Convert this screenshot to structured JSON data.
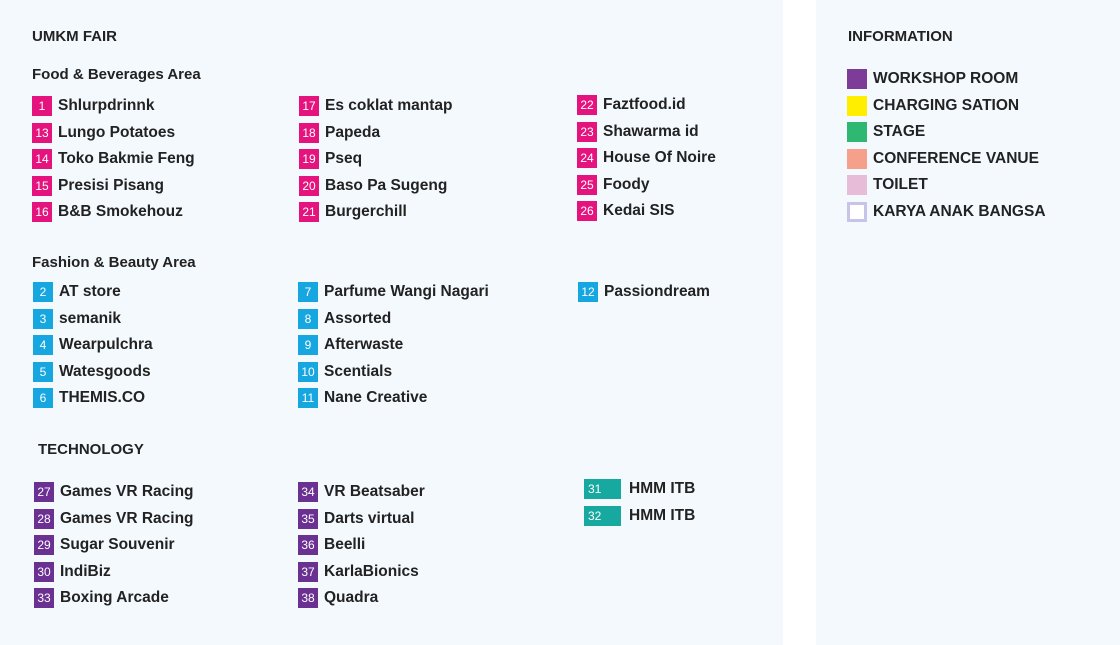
{
  "title": "UMKM FAIR",
  "colors": {
    "food": "#e5137e",
    "fashion": "#17a7e0",
    "technology": "#6a3092",
    "teal": "#17a89f",
    "panel_bg": "#f4f9fd"
  },
  "food": {
    "heading": "Food & Beverages Area",
    "columns": [
      [
        {
          "num": "1",
          "name": "Shlurpdrinnk"
        },
        {
          "num": "13",
          "name": "Lungo Potatoes"
        },
        {
          "num": "14",
          "name": "Toko Bakmie Feng"
        },
        {
          "num": "15",
          "name": "Presisi Pisang"
        },
        {
          "num": "16",
          "name": "B&B Smokehouz"
        }
      ],
      [
        {
          "num": "17",
          "name": "Es coklat mantap"
        },
        {
          "num": "18",
          "name": "Papeda"
        },
        {
          "num": "19",
          "name": "Pseq"
        },
        {
          "num": "20",
          "name": "Baso Pa Sugeng"
        },
        {
          "num": "21",
          "name": "Burgerchill"
        }
      ],
      [
        {
          "num": "22",
          "name": "Faztfood.id"
        },
        {
          "num": "23",
          "name": "Shawarma id"
        },
        {
          "num": "24",
          "name": "House Of Noire"
        },
        {
          "num": "25",
          "name": "Foody"
        },
        {
          "num": "26",
          "name": "Kedai SIS"
        }
      ]
    ]
  },
  "fashion": {
    "heading": "Fashion & Beauty Area",
    "columns": [
      [
        {
          "num": "2",
          "name": "AT store"
        },
        {
          "num": "3",
          "name": "semanik"
        },
        {
          "num": "4",
          "name": "Wearpulchra"
        },
        {
          "num": "5",
          "name": "Watesgoods"
        },
        {
          "num": "6",
          "name": "THEMIS.CO"
        }
      ],
      [
        {
          "num": "7",
          "name": "Parfume Wangi Nagari"
        },
        {
          "num": "8",
          "name": "Assorted"
        },
        {
          "num": "9",
          "name": "Afterwaste"
        },
        {
          "num": "10",
          "name": "Scentials"
        },
        {
          "num": "11",
          "name": "Nane Creative"
        }
      ],
      [
        {
          "num": "12",
          "name": "Passiondream"
        }
      ]
    ]
  },
  "technology": {
    "heading": "TECHNOLOGY",
    "columns": [
      [
        {
          "num": "27",
          "name": "Games VR Racing"
        },
        {
          "num": "28",
          "name": "Games VR Racing"
        },
        {
          "num": "29",
          "name": "Sugar Souvenir"
        },
        {
          "num": "30",
          "name": "IndiBiz"
        },
        {
          "num": "33",
          "name": "Boxing Arcade"
        }
      ],
      [
        {
          "num": "34",
          "name": "VR Beatsaber"
        },
        {
          "num": "35",
          "name": "Darts virtual"
        },
        {
          "num": "36",
          "name": "Beelli"
        },
        {
          "num": "37",
          "name": "KarlaBionics"
        },
        {
          "num": "38",
          "name": "Quadra"
        }
      ],
      [
        {
          "num": "31",
          "name": "HMM ITB"
        },
        {
          "num": "32",
          "name": "HMM ITB"
        }
      ]
    ]
  },
  "information": {
    "heading": "INFORMATION",
    "items": [
      {
        "label": "WORKSHOP ROOM",
        "color": "#7d3c98"
      },
      {
        "label": "CHARGING SATION",
        "color": "#ffee00"
      },
      {
        "label": "STAGE",
        "color": "#2eb872"
      },
      {
        "label": "CONFERENCE VANUE",
        "color": "#f4a08a"
      },
      {
        "label": "TOILET",
        "color": "#e6bcd8"
      },
      {
        "label": "KARYA ANAK BANGSA",
        "color": "#c8c3e8"
      }
    ]
  }
}
